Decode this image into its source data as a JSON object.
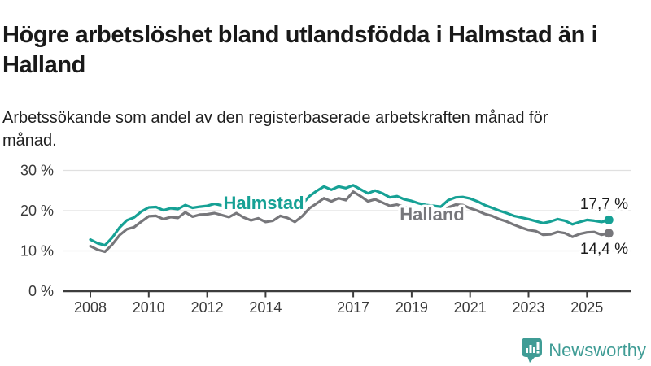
{
  "header": {
    "title": "Högre arbetslöshet bland utlandsfödda i Halmstad än i Halland",
    "subtitle": "Arbetssökande som andel av den registerbaserade arbetskraften månad för månad."
  },
  "chart_data": {
    "type": "line",
    "unit": "%",
    "grid": "horizontal",
    "legend": "inline-labels",
    "ylim": [
      0,
      33
    ],
    "xlim": [
      2007.1,
      2026.6
    ],
    "x": [
      2008.0,
      2008.25,
      2008.5,
      2008.75,
      2009.0,
      2009.25,
      2009.5,
      2009.75,
      2010.0,
      2010.25,
      2010.5,
      2010.75,
      2011.0,
      2011.25,
      2011.5,
      2011.75,
      2012.0,
      2012.25,
      2012.5,
      2012.75,
      2013.0,
      2013.25,
      2013.5,
      2013.75,
      2014.0,
      2014.25,
      2014.5,
      2014.75,
      2015.0,
      2015.25,
      2015.5,
      2015.75,
      2016.0,
      2016.25,
      2016.5,
      2016.75,
      2017.0,
      2017.25,
      2017.5,
      2017.75,
      2018.0,
      2018.25,
      2018.5,
      2018.75,
      2019.0,
      2019.25,
      2019.5,
      2019.75,
      2020.0,
      2020.25,
      2020.5,
      2020.75,
      2021.0,
      2021.25,
      2021.5,
      2021.75,
      2022.0,
      2022.25,
      2022.5,
      2022.75,
      2023.0,
      2023.25,
      2023.5,
      2023.75,
      2024.0,
      2024.25,
      2024.5,
      2024.75,
      2025.0,
      2025.25,
      2025.5,
      2025.75
    ],
    "series": [
      {
        "name": "Halmstad",
        "color": "#16a195",
        "end_label": "17,7 %",
        "end_value": 17.7,
        "values": [
          12.8,
          11.9,
          11.4,
          13.3,
          15.8,
          17.6,
          18.3,
          19.8,
          20.8,
          20.9,
          20.1,
          20.6,
          20.4,
          21.4,
          20.7,
          21.0,
          21.2,
          21.7,
          21.3,
          20.9,
          21.3,
          20.8,
          20.4,
          20.9,
          20.6,
          20.2,
          20.8,
          21.0,
          20.7,
          21.6,
          23.6,
          24.9,
          26.0,
          25.2,
          26.0,
          25.6,
          26.3,
          25.3,
          24.3,
          25.0,
          24.3,
          23.3,
          23.6,
          22.8,
          22.4,
          21.8,
          21.4,
          21.2,
          21.0,
          22.6,
          23.3,
          23.4,
          23.0,
          22.3,
          21.4,
          20.7,
          20.0,
          19.4,
          18.7,
          18.3,
          17.9,
          17.4,
          16.9,
          17.3,
          17.9,
          17.5,
          16.6,
          17.2,
          17.7,
          17.5,
          17.2,
          17.7
        ]
      },
      {
        "name": "Halland",
        "color": "#77777b",
        "end_label": "14,4 %",
        "end_value": 14.4,
        "values": [
          11.2,
          10.3,
          9.8,
          11.6,
          13.9,
          15.4,
          15.9,
          17.3,
          18.6,
          18.7,
          17.9,
          18.4,
          18.2,
          19.6,
          18.5,
          19.0,
          19.1,
          19.4,
          18.9,
          18.4,
          19.4,
          18.3,
          17.6,
          18.1,
          17.2,
          17.5,
          18.7,
          18.2,
          17.2,
          18.6,
          20.6,
          21.8,
          23.1,
          22.3,
          23.1,
          22.6,
          24.7,
          23.6,
          22.3,
          22.8,
          22.0,
          21.2,
          21.5,
          20.9,
          20.3,
          19.9,
          19.6,
          19.4,
          19.3,
          20.8,
          21.5,
          21.4,
          20.6,
          20.0,
          19.2,
          18.7,
          17.9,
          17.3,
          16.5,
          15.8,
          15.2,
          14.9,
          14.0,
          14.1,
          14.7,
          14.4,
          13.5,
          14.2,
          14.6,
          14.7,
          14.0,
          14.4
        ]
      }
    ],
    "y_ticks": [
      {
        "value": 0,
        "label": "0 %"
      },
      {
        "value": 10,
        "label": "10 %"
      },
      {
        "value": 20,
        "label": "20 %"
      },
      {
        "value": 30,
        "label": "30 %"
      }
    ],
    "x_ticks": [
      {
        "value": 2008,
        "label": "2008"
      },
      {
        "value": 2010,
        "label": "2010"
      },
      {
        "value": 2012,
        "label": "2012"
      },
      {
        "value": 2014,
        "label": "2014"
      },
      {
        "value": 2017,
        "label": "2017"
      },
      {
        "value": 2019,
        "label": "2019"
      },
      {
        "value": 2021,
        "label": "2021"
      },
      {
        "value": 2023,
        "label": "2023"
      },
      {
        "value": 2025,
        "label": "2025"
      }
    ]
  },
  "footer": {
    "brand": "Newsworthy"
  },
  "colors": {
    "halmstad": "#16a195",
    "halland": "#77777b",
    "axis": "#3d3d3d",
    "grid": "#e0e0e0",
    "tick_text": "#3a3a3a",
    "value_text": "#1a1a1a",
    "brand": "#3f9c95"
  }
}
